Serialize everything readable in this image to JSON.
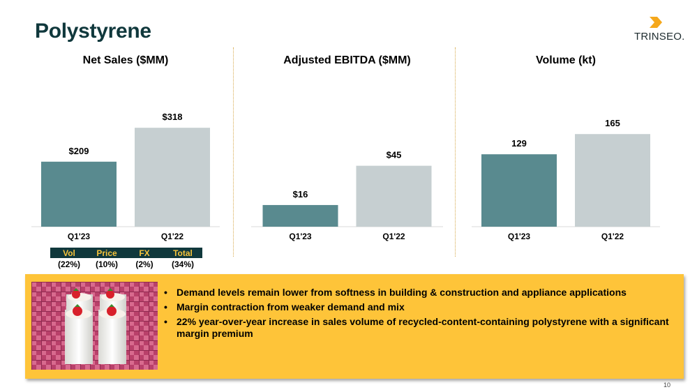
{
  "page": {
    "title": "Polystyrene",
    "logo_text": "TRINSEO.",
    "page_number": "10"
  },
  "colors": {
    "primary_bar": "#598a8f",
    "secondary_bar": "#c6cfd1",
    "title": "#10383c",
    "accent": "#f5a81c",
    "callout_bg": "#fec439"
  },
  "chart_data": [
    {
      "type": "bar",
      "title": "Net Sales ($MM)",
      "categories": [
        "Q1'23",
        "Q1'22"
      ],
      "values": [
        209,
        318
      ],
      "labels": [
        "$209",
        "$318"
      ],
      "ylim": [
        0,
        370
      ],
      "grid": false
    },
    {
      "type": "bar",
      "title": "Adjusted EBITDA ($MM)",
      "categories": [
        "Q1'23",
        "Q1'22"
      ],
      "values": [
        16,
        45
      ],
      "labels": [
        "$16",
        "$45"
      ],
      "ylim": [
        0,
        85
      ],
      "grid": false
    },
    {
      "type": "bar",
      "title": "Volume (kt)",
      "categories": [
        "Q1'23",
        "Q1'22"
      ],
      "values": [
        129,
        165
      ],
      "labels": [
        "129",
        "165"
      ],
      "ylim": [
        0,
        205
      ],
      "grid": false
    }
  ],
  "bridge_table": {
    "headers": [
      "Vol",
      "Price",
      "FX",
      "Total"
    ],
    "values": [
      "(22%)",
      "(10%)",
      "(2%)",
      "(34%)"
    ]
  },
  "callout": {
    "image_icon": "yogurt-cups-photo",
    "bullets": [
      "Demand levels remain lower from softness in building & construction and appliance applications",
      "Margin contraction from weaker demand and mix",
      "22% year-over-year increase in sales volume of recycled-content-containing polystyrene with a significant margin premium"
    ]
  }
}
